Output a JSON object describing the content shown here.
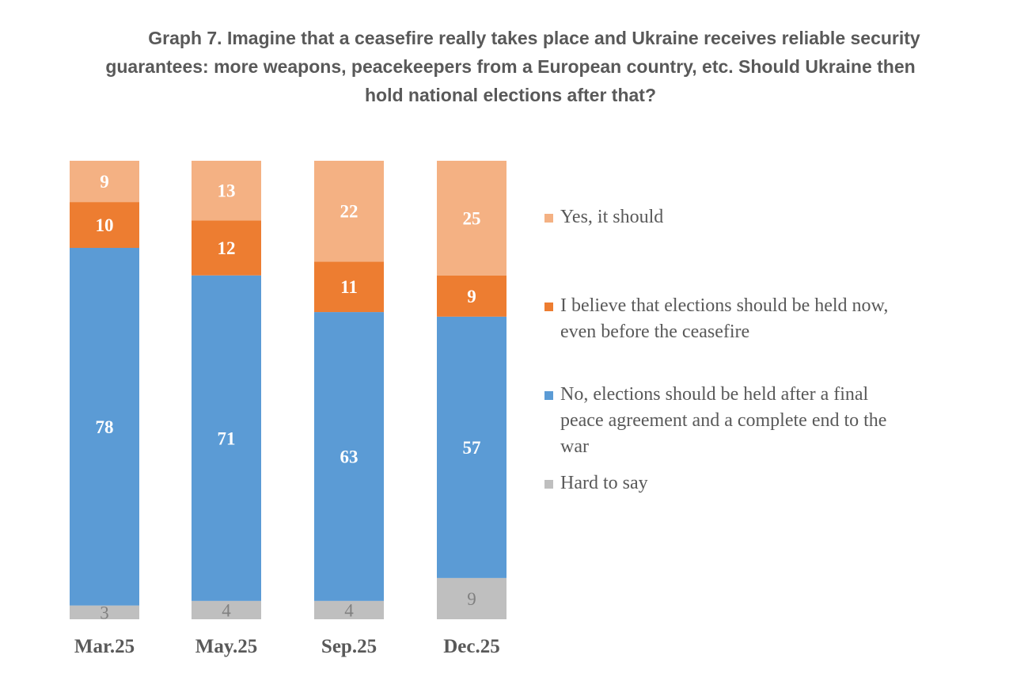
{
  "chart_data": {
    "type": "bar",
    "stacked": true,
    "title": "Graph 7. Imagine that a ceasefire really takes place and Ukraine receives reliable security guarantees: more weapons, peacekeepers from a European country, etc. Should Ukraine then hold national elections after that?",
    "title_lines": [
      "Graph 7. Imagine that a ceasefire really takes place and Ukraine receives reliable security",
      "guarantees: more weapons, peacekeepers from a European country, etc. Should Ukraine then",
      "hold national elections after that?"
    ],
    "xlabel": "",
    "ylabel": "",
    "ylim": [
      0,
      100
    ],
    "grid": false,
    "legend_position": "right",
    "categories": [
      "Mar.25",
      "May.25",
      "Sep.25",
      "Dec.25"
    ],
    "series": [
      {
        "name": "Hard to say",
        "color": "#BFBFBF",
        "label_color": "#808080",
        "values": [
          3,
          4,
          4,
          9
        ]
      },
      {
        "name": "No, elections should be held after a final peace agreement and a complete end to the war",
        "color": "#5B9BD5",
        "label_color": "#FFFFFF",
        "values": [
          78,
          71,
          63,
          57
        ]
      },
      {
        "name": "I believe that elections should be held now, even before the ceasefire",
        "color": "#ED7D31",
        "label_color": "#FFFFFF",
        "values": [
          10,
          12,
          11,
          9
        ]
      },
      {
        "name": "Yes, it should",
        "color": "#F4B183",
        "label_color": "#FFFFFF",
        "values": [
          9,
          13,
          22,
          25
        ]
      }
    ],
    "legend": [
      {
        "label_lines": [
          "Yes, it should"
        ],
        "color": "#F4B183"
      },
      {
        "label_lines": [
          "I believe that elections should be held now,",
          "even before the ceasefire"
        ],
        "color": "#ED7D31"
      },
      {
        "label_lines": [
          "No, elections should be held after a final",
          "peace agreement and a complete end to the",
          "war"
        ],
        "color": "#5B9BD5"
      },
      {
        "label_lines": [
          "Hard to say"
        ],
        "color": "#BFBFBF"
      }
    ]
  }
}
